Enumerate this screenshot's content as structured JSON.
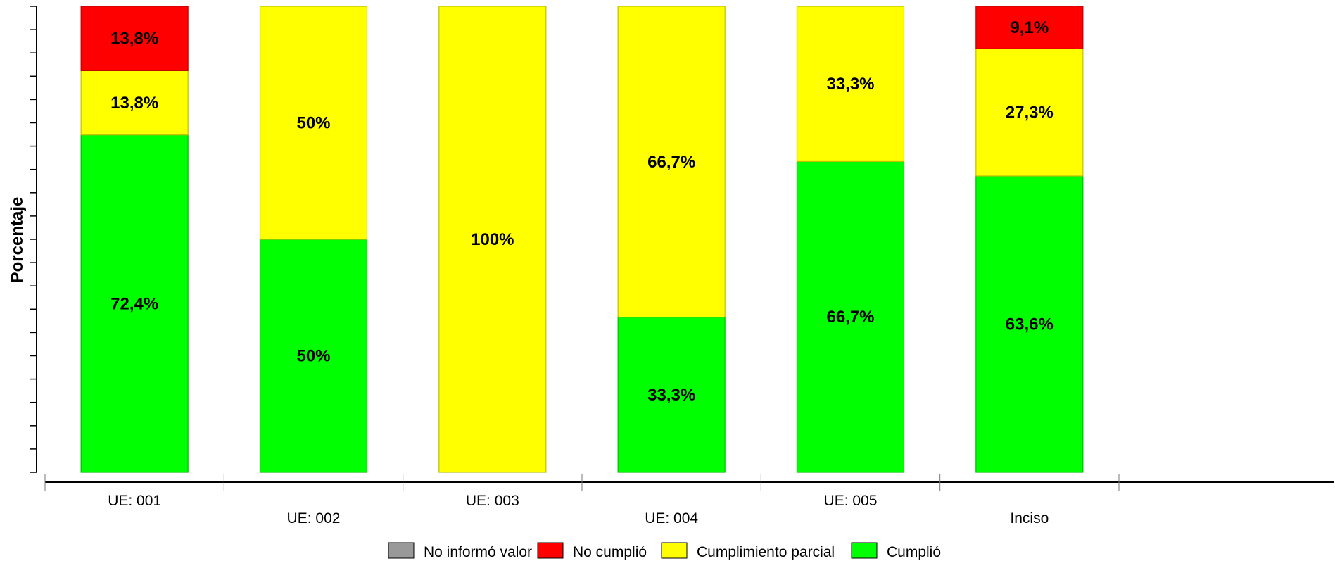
{
  "chart_data": {
    "type": "bar",
    "stacked": true,
    "ylabel": "Porcentaje",
    "ylim": [
      0,
      100
    ],
    "categories": [
      "UE: 001",
      "UE: 002",
      "UE: 003",
      "UE: 004",
      "UE: 005",
      "Inciso"
    ],
    "series": [
      {
        "name": "Cumplió",
        "color": "#00ff00",
        "values": [
          72.4,
          50,
          0,
          33.3,
          66.7,
          63.6
        ],
        "labels": [
          "72,4%",
          "50%",
          "",
          "33,3%",
          "66,7%",
          "63,6%"
        ]
      },
      {
        "name": "Cumplimiento parcial",
        "color": "#ffff00",
        "values": [
          13.8,
          50,
          100,
          66.7,
          33.3,
          27.3
        ],
        "labels": [
          "13,8%",
          "50%",
          "100%",
          "66,7%",
          "33,3%",
          "27,3%"
        ]
      },
      {
        "name": "No cumplió",
        "color": "#ff0000",
        "values": [
          13.8,
          0,
          0,
          0,
          0,
          9.1
        ],
        "labels": [
          "13,8%",
          "",
          "",
          "",
          "",
          "9,1%"
        ]
      },
      {
        "name": "No informó valor",
        "color": "#999999",
        "values": [
          0,
          0,
          0,
          0,
          0,
          0
        ],
        "labels": [
          "",
          "",
          "",
          "",
          "",
          ""
        ]
      }
    ],
    "legend": {
      "position": "bottom",
      "order": [
        "No informó valor",
        "No cumplió",
        "Cumplimiento parcial",
        "Cumplió"
      ]
    },
    "grid": false
  }
}
